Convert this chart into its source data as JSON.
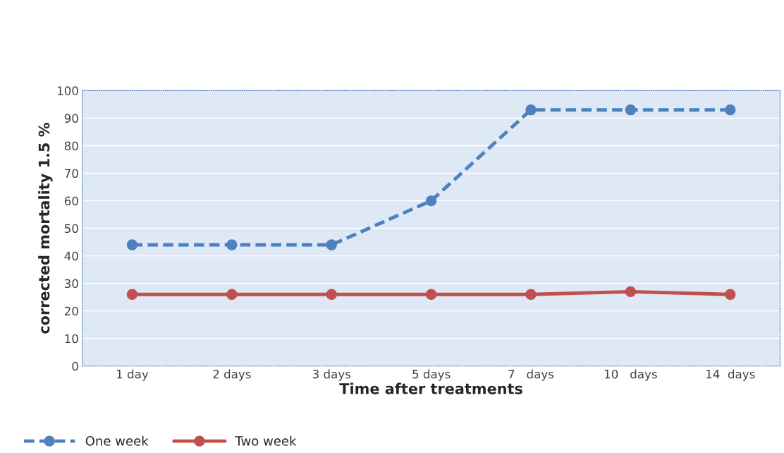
{
  "chart_data": {
    "type": "line",
    "xlabel": "Time after treatments",
    "ylabel": "corrected mortality 1.5 %",
    "categories": [
      "1 day",
      "2 days",
      "3 days",
      "5 days",
      "7   days",
      "10   days",
      "14  days"
    ],
    "series": [
      {
        "name": "One week",
        "color": "#4f81bd",
        "values": [
          44,
          44,
          44,
          60,
          93,
          93,
          93
        ],
        "line_style": "dashed"
      },
      {
        "name": "Two week",
        "color": "#c0504d",
        "values": [
          26,
          26,
          26,
          26,
          26,
          27,
          26
        ],
        "line_style": "solid"
      }
    ],
    "ylim": [
      0,
      100
    ],
    "yticks": [
      0,
      10,
      20,
      30,
      40,
      50,
      60,
      70,
      80,
      90,
      100
    ],
    "grid": "y",
    "legend": "bottom",
    "marker": "circle"
  }
}
